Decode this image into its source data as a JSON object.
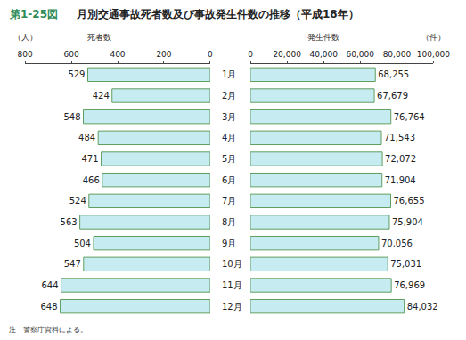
{
  "figure_label": "第1-25図",
  "title": "月別交通事故死者数及び事故発生件数の推移（平成18年）",
  "note": "注　警察庁資料による。",
  "chart_data": [
    {
      "type": "bar",
      "orientation": "horizontal",
      "xlabel": "死者数",
      "x_unit": "（人）",
      "categories": [
        "1月",
        "2月",
        "3月",
        "4月",
        "5月",
        "6月",
        "7月",
        "8月",
        "9月",
        "10月",
        "11月",
        "12月"
      ],
      "values": [
        529,
        424,
        548,
        484,
        471,
        466,
        524,
        563,
        504,
        547,
        644,
        648
      ],
      "color": "#c6ecf2",
      "data_labels": true,
      "grid": false,
      "xlim": [
        800,
        0
      ],
      "xticks": [
        800,
        600,
        400,
        200,
        0
      ]
    },
    {
      "type": "bar",
      "orientation": "horizontal",
      "xlabel": "発生件数",
      "x_unit": "（件）",
      "categories": [
        "1月",
        "2月",
        "3月",
        "4月",
        "5月",
        "6月",
        "7月",
        "8月",
        "9月",
        "10月",
        "11月",
        "12月"
      ],
      "values": [
        68255,
        67679,
        76764,
        71543,
        72072,
        71904,
        76655,
        75904,
        70056,
        75031,
        76969,
        84032
      ],
      "value_labels": [
        "68,255",
        "67,679",
        "76,764",
        "71,543",
        "72,072",
        "71,904",
        "76,655",
        "75,904",
        "70,056",
        "75,031",
        "76,969",
        "84,032"
      ],
      "color": "#c6ecf2",
      "data_labels": true,
      "grid": false,
      "xlim": [
        0,
        100000
      ],
      "xticks": [
        0,
        {
          "value": 20000,
          "label": "20,000"
        },
        {
          "value": 40000,
          "label": "40,000"
        },
        {
          "value": 60000,
          "label": "60,000"
        },
        {
          "value": 80000,
          "label": "80,000"
        },
        {
          "value": 100000,
          "label": "100,000"
        }
      ]
    }
  ]
}
